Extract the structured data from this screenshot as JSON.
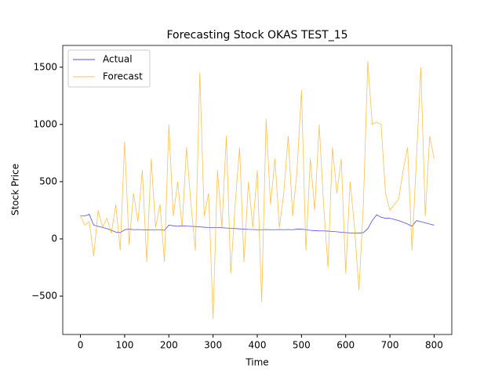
{
  "chart_data": {
    "type": "line",
    "title": "Forecasting Stock OKAS TEST_15",
    "x_label": "Time",
    "y_label": "Stock Price",
    "x": [
      0,
      10,
      20,
      30,
      40,
      50,
      60,
      70,
      80,
      90,
      100,
      110,
      120,
      130,
      140,
      150,
      160,
      170,
      180,
      190,
      200,
      210,
      220,
      230,
      240,
      250,
      260,
      270,
      280,
      290,
      300,
      310,
      320,
      330,
      340,
      350,
      360,
      370,
      380,
      390,
      400,
      410,
      420,
      430,
      440,
      450,
      460,
      470,
      480,
      490,
      500,
      510,
      520,
      530,
      540,
      550,
      560,
      570,
      580,
      590,
      600,
      610,
      620,
      630,
      640,
      650,
      660,
      670,
      680,
      690,
      700,
      710,
      720,
      730,
      740,
      750,
      760,
      770,
      780,
      790,
      800
    ],
    "series": [
      {
        "name": "Actual",
        "color": "#0000ff",
        "values": [
          200,
          200,
          215,
          120,
          110,
          100,
          90,
          75,
          60,
          55,
          80,
          85,
          80,
          82,
          80,
          78,
          80,
          80,
          80,
          75,
          120,
          115,
          110,
          115,
          112,
          110,
          108,
          105,
          102,
          100,
          100,
          100,
          98,
          95,
          92,
          90,
          88,
          85,
          83,
          82,
          80,
          80,
          82,
          80,
          80,
          82,
          80,
          82,
          80,
          85,
          85,
          80,
          75,
          72,
          70,
          70,
          68,
          65,
          62,
          58,
          55,
          52,
          52,
          50,
          55,
          90,
          160,
          210,
          190,
          180,
          180,
          170,
          160,
          145,
          130,
          110,
          160,
          150,
          140,
          130,
          120
        ]
      },
      {
        "name": "Forecast",
        "color": "#ffa500",
        "values": [
          200,
          120,
          150,
          -150,
          250,
          100,
          180,
          50,
          300,
          -100,
          850,
          -50,
          400,
          150,
          600,
          -200,
          700,
          100,
          300,
          -200,
          1000,
          200,
          500,
          100,
          800,
          300,
          -100,
          1450,
          200,
          400,
          -700,
          600,
          100,
          900,
          -300,
          300,
          800,
          -200,
          500,
          100,
          600,
          -550,
          1050,
          300,
          700,
          100,
          400,
          900,
          200,
          600,
          1300,
          -100,
          700,
          250,
          1000,
          300,
          -250,
          800,
          400,
          700,
          -300,
          500,
          100,
          -450,
          300,
          1550,
          1000,
          1020,
          1000,
          400,
          250,
          300,
          350,
          600,
          800,
          -100,
          700,
          1500,
          200,
          900,
          700
        ]
      }
    ],
    "xlim": [
      -40,
      840
    ],
    "xticks": [
      0,
      100,
      200,
      300,
      400,
      500,
      600,
      700,
      800
    ],
    "ylim": [
      -835,
      1690
    ],
    "yticks": [
      {
        "value": -500,
        "label": "−500"
      },
      0,
      500,
      1000,
      1500
    ],
    "legend": "upper left"
  }
}
